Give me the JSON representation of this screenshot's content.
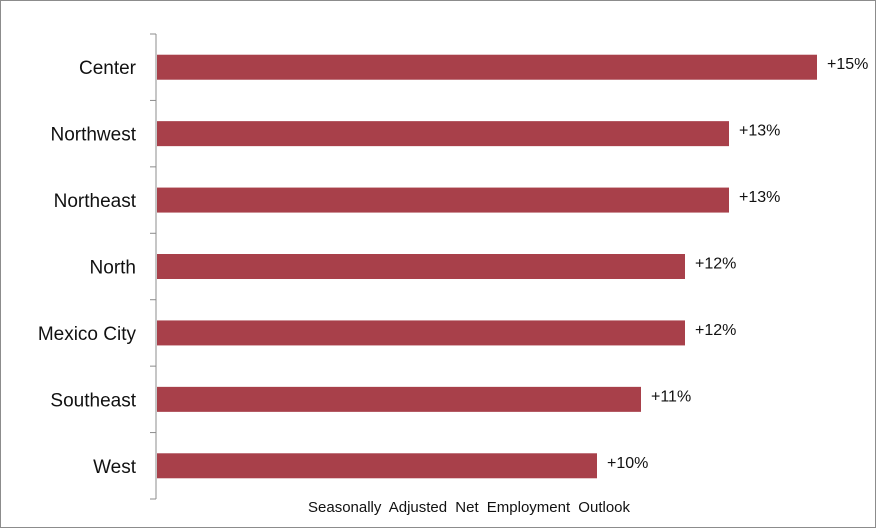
{
  "chart_data": {
    "type": "bar",
    "orientation": "horizontal",
    "categories": [
      "Center",
      "Northwest",
      "Northeast",
      "North",
      "Mexico City",
      "Southeast",
      "West"
    ],
    "values": [
      15,
      13,
      13,
      12,
      12,
      11,
      10
    ],
    "data_labels": [
      "+15%",
      "+13%",
      "+13%",
      "+12%",
      "+12%",
      "+11%",
      "+10%"
    ],
    "xlabel": "Seasonally Adjusted Net Employment Outlook",
    "ylabel": "",
    "title": "",
    "xlim": [
      0,
      15
    ],
    "grid": false,
    "legend": "none",
    "bar_color": "#a8404a"
  }
}
